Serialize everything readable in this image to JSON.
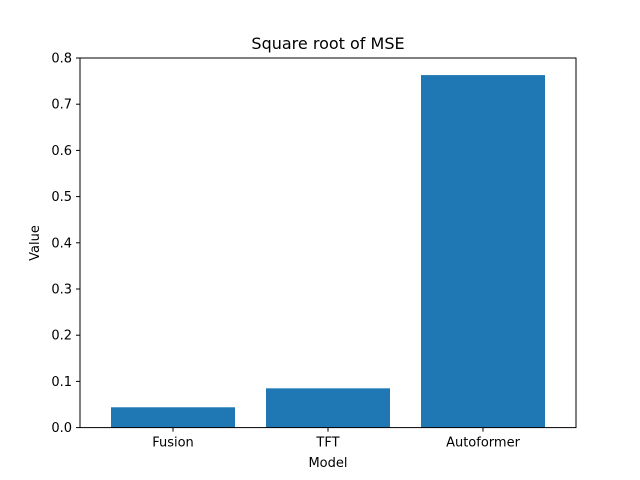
{
  "chart_data": {
    "type": "bar",
    "title": "Square root of MSE",
    "xlabel": "Model",
    "ylabel": "Value",
    "categories": [
      "Fusion",
      "TFT",
      "Autoformer"
    ],
    "values": [
      0.044,
      0.085,
      0.763
    ],
    "ylim": [
      0,
      0.8
    ],
    "yticks": [
      0.0,
      0.1,
      0.2,
      0.3,
      0.4,
      0.5,
      0.6,
      0.7,
      0.8
    ],
    "ytick_labels": [
      "0.0",
      "0.1",
      "0.2",
      "0.3",
      "0.4",
      "0.5",
      "0.6",
      "0.7",
      "0.8"
    ],
    "bar_color": "#1f77b4",
    "grid": false,
    "legend": false
  }
}
